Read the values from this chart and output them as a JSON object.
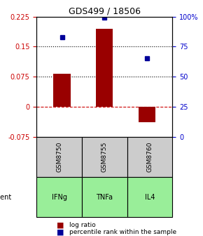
{
  "title": "GDS499 / 18506",
  "samples": [
    "GSM8750",
    "GSM8755",
    "GSM8760"
  ],
  "agents": [
    "IFNg",
    "TNFa",
    "IL4"
  ],
  "log_ratios": [
    0.082,
    0.195,
    -0.038
  ],
  "percentile_ranks": [
    0.83,
    0.99,
    0.65
  ],
  "bar_color": "#990000",
  "dot_color": "#000099",
  "agent_colors": [
    "#ccffcc",
    "#aaffaa",
    "#66ee66"
  ],
  "sample_bg": "#cccccc",
  "ylim_left": [
    -0.075,
    0.225
  ],
  "ylim_right": [
    0,
    100
  ],
  "yticks_left": [
    -0.075,
    0,
    0.075,
    0.15,
    0.225
  ],
  "ytick_labels_left": [
    "-0.075",
    "0",
    "0.075",
    "0.15",
    "0.225"
  ],
  "yticks_right": [
    0,
    25,
    50,
    75,
    100
  ],
  "ytick_labels_right": [
    "0",
    "25",
    "50",
    "75",
    "100%"
  ],
  "hlines": [
    0.075,
    0.15
  ],
  "zero_line": 0,
  "bar_width": 0.4
}
